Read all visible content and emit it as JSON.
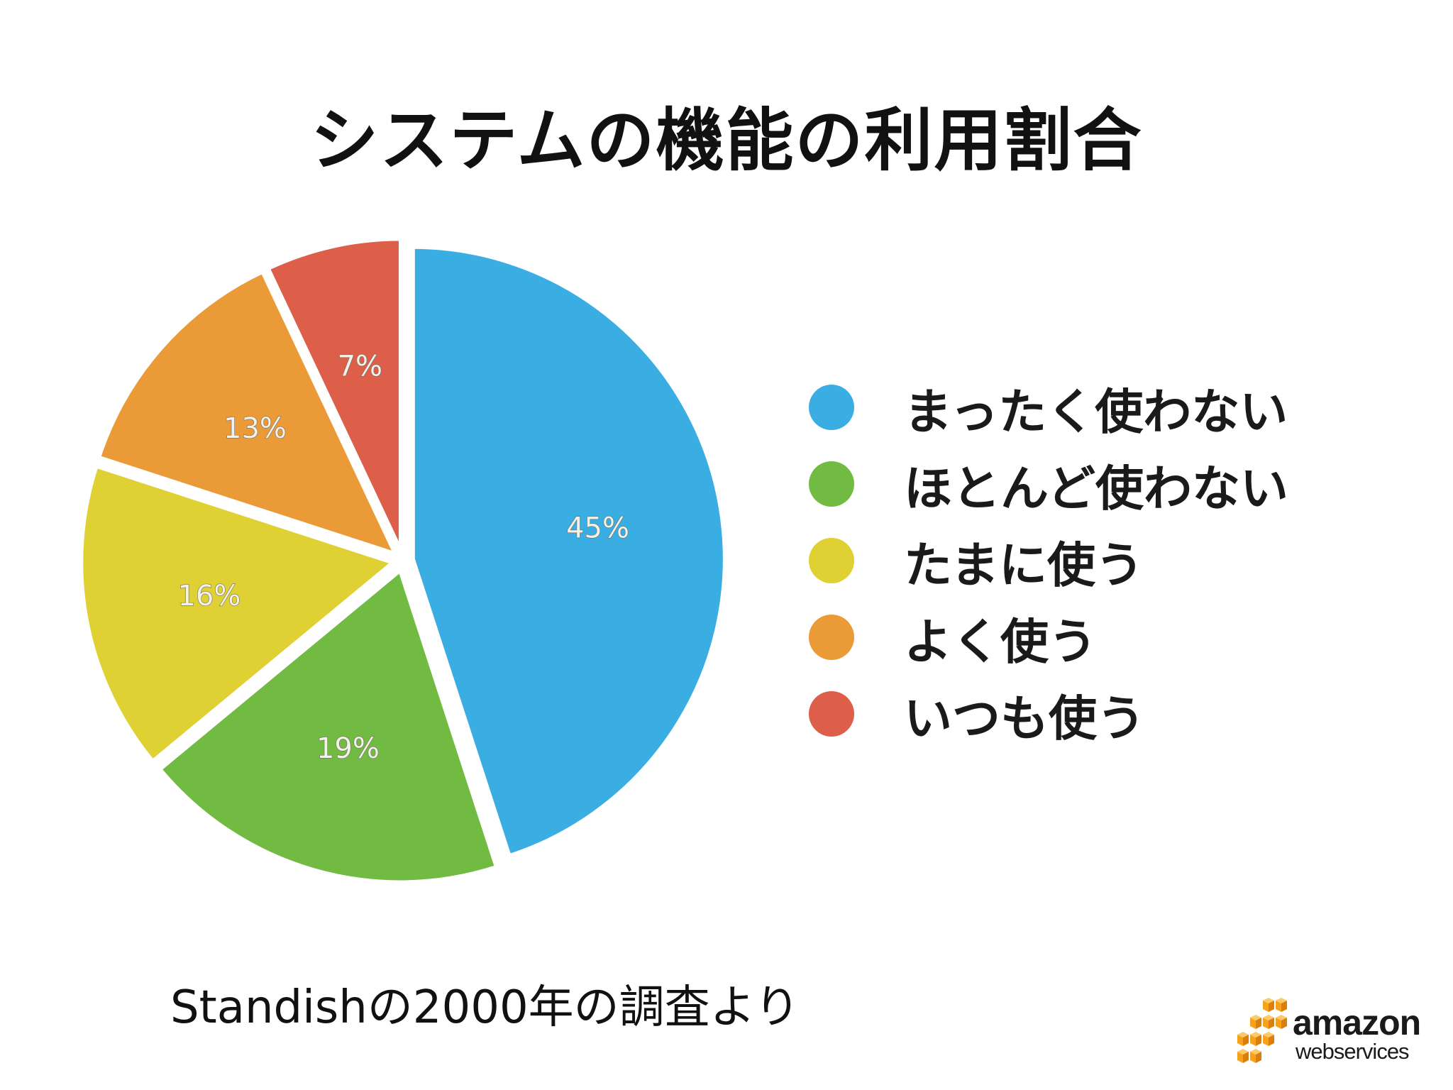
{
  "slide": {
    "title": "システムの機能の利用割合",
    "source_note": "Standishの2000年の調査より",
    "logo": {
      "line1": "amazon",
      "line2": "webservices",
      "cube_color": "#f7a21b"
    }
  },
  "chart_data": {
    "type": "pie",
    "title": "システムの機能の利用割合",
    "legend_position": "right",
    "slices": [
      {
        "label": "まったく使わない",
        "value": 45,
        "value_label": "45%",
        "color": "#3aaee3"
      },
      {
        "label": "ほとんど使わない",
        "value": 19,
        "value_label": "19%",
        "color": "#72bb43"
      },
      {
        "label": "たまに使う",
        "value": 16,
        "value_label": "16%",
        "color": "#dfd033"
      },
      {
        "label": "よく使う",
        "value": 13,
        "value_label": "13%",
        "color": "#eb9a38"
      },
      {
        "label": "いつも使う",
        "value": 7,
        "value_label": "7%",
        "color": "#dd5f49"
      }
    ]
  }
}
